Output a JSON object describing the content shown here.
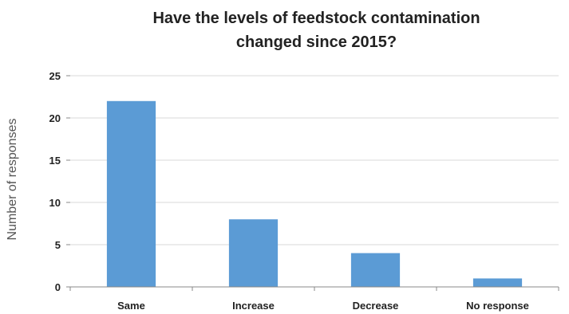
{
  "chart_data": {
    "type": "bar",
    "title_lines": [
      "Have the levels of feedstock contamination",
      "changed since 2015?"
    ],
    "ylabel": "Number of responses",
    "xlabel": "",
    "categories": [
      "Same",
      "Increase",
      "Decrease",
      "No response"
    ],
    "values": [
      22,
      8,
      4,
      1
    ],
    "ylim": [
      0,
      25
    ],
    "yticks": [
      0,
      5,
      10,
      15,
      20,
      25
    ],
    "grid": true,
    "legend": "none",
    "bar_color": "#5b9bd5"
  }
}
